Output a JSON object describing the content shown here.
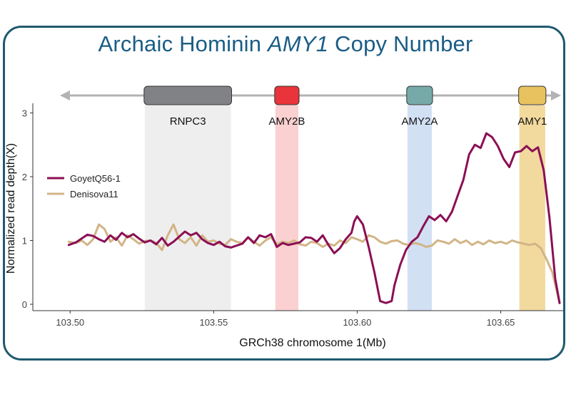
{
  "title": {
    "prefix": "Archaic Hominin ",
    "gene": "AMY1",
    "suffix": " Copy Number"
  },
  "chart_data": {
    "type": "line",
    "xlabel": "GRCh38 chromosome 1(Mb)",
    "ylabel": "Normalized read depth(X)",
    "xlim": [
      103.487,
      103.672
    ],
    "ylim": [
      -0.1,
      3.15
    ],
    "xticks": [
      103.5,
      103.55,
      103.6,
      103.65
    ],
    "xtick_labels": [
      "103.50",
      "103.55",
      "103.60",
      "103.65"
    ],
    "yticks": [
      0,
      1,
      2,
      3
    ],
    "ytick_labels": [
      "0",
      "1",
      "2",
      "3"
    ],
    "grid": false,
    "legend_position": "left",
    "genes": [
      {
        "name": "RNPC3",
        "start": 103.526,
        "end": 103.556,
        "color": "#808285",
        "band": "#eeeeee"
      },
      {
        "name": "AMY2B",
        "start": 103.5715,
        "end": 103.5795,
        "color": "#e8343a",
        "band": "#fbd0d0"
      },
      {
        "name": "AMY2A",
        "start": 103.6175,
        "end": 103.626,
        "color": "#76aaa9",
        "band": "#d2e0f4"
      },
      {
        "name": "AMY1",
        "start": 103.6565,
        "end": 103.6655,
        "color": "#e7c25e",
        "band": "#f0d28c"
      }
    ],
    "series": [
      {
        "name": "GoyetQ56-1",
        "color": "#8b0f55",
        "x": [
          103.4995,
          103.502,
          103.504,
          103.506,
          103.508,
          103.51,
          103.512,
          103.514,
          103.516,
          103.518,
          103.52,
          103.522,
          103.524,
          103.526,
          103.528,
          103.53,
          103.532,
          103.534,
          103.536,
          103.538,
          103.54,
          103.542,
          103.544,
          103.546,
          103.548,
          103.55,
          103.552,
          103.554,
          103.556,
          103.558,
          103.56,
          103.562,
          103.564,
          103.566,
          103.568,
          103.57,
          103.572,
          103.574,
          103.576,
          103.578,
          103.58,
          103.582,
          103.584,
          103.586,
          103.588,
          103.59,
          103.592,
          103.594,
          103.596,
          103.598,
          103.599,
          103.6,
          103.602,
          103.604,
          103.606,
          103.608,
          103.61,
          103.612,
          103.613,
          103.615,
          103.617,
          103.619,
          103.621,
          103.623,
          103.625,
          103.627,
          103.629,
          103.631,
          103.633,
          103.635,
          103.637,
          103.639,
          103.641,
          103.643,
          103.645,
          103.647,
          103.649,
          103.651,
          103.653,
          103.655,
          103.657,
          103.659,
          103.661,
          103.663,
          103.665,
          103.667,
          103.669,
          103.6705
        ],
        "values": [
          0.93,
          0.97,
          1.03,
          1.09,
          1.07,
          1.02,
          0.98,
          1.08,
          1.01,
          1.12,
          1.05,
          1.1,
          1.03,
          0.97,
          1.0,
          0.94,
          1.04,
          0.92,
          0.98,
          1.06,
          1.14,
          1.08,
          1.12,
          1.02,
          0.96,
          0.93,
          0.98,
          0.91,
          0.89,
          0.92,
          0.95,
          1.05,
          0.96,
          1.08,
          1.05,
          1.1,
          0.9,
          0.96,
          0.93,
          0.95,
          0.97,
          1.05,
          1.04,
          0.98,
          1.08,
          0.93,
          0.8,
          0.88,
          1.02,
          1.12,
          1.3,
          1.38,
          1.25,
          0.9,
          0.5,
          0.05,
          0.02,
          0.05,
          0.3,
          0.62,
          0.85,
          0.98,
          1.05,
          1.22,
          1.38,
          1.32,
          1.4,
          1.3,
          1.45,
          1.7,
          1.95,
          2.35,
          2.5,
          2.45,
          2.68,
          2.62,
          2.48,
          2.28,
          2.15,
          2.38,
          2.4,
          2.48,
          2.4,
          2.46,
          2.1,
          1.35,
          0.4,
          0.02
        ]
      },
      {
        "name": "Denisova11",
        "color": "#d2b486",
        "x": [
          103.4995,
          103.502,
          103.504,
          103.506,
          103.508,
          103.51,
          103.512,
          103.514,
          103.516,
          103.518,
          103.52,
          103.522,
          103.524,
          103.526,
          103.528,
          103.53,
          103.532,
          103.534,
          103.536,
          103.538,
          103.54,
          103.542,
          103.544,
          103.546,
          103.548,
          103.55,
          103.552,
          103.554,
          103.556,
          103.558,
          103.56,
          103.562,
          103.564,
          103.566,
          103.568,
          103.57,
          103.572,
          103.574,
          103.576,
          103.578,
          103.58,
          103.582,
          103.584,
          103.586,
          103.588,
          103.59,
          103.592,
          103.594,
          103.596,
          103.598,
          103.6,
          103.602,
          103.604,
          103.606,
          103.608,
          103.61,
          103.612,
          103.614,
          103.616,
          103.618,
          103.62,
          103.622,
          103.624,
          103.626,
          103.628,
          103.63,
          103.632,
          103.634,
          103.636,
          103.638,
          103.64,
          103.642,
          103.644,
          103.646,
          103.648,
          103.65,
          103.652,
          103.654,
          103.656,
          103.658,
          103.66,
          103.662,
          103.664,
          103.666,
          103.668,
          103.6705
        ],
        "values": [
          0.98,
          0.96,
          1.0,
          0.93,
          1.02,
          1.25,
          1.18,
          0.98,
          1.05,
          0.92,
          1.08,
          1.02,
          0.95,
          0.99,
          1.0,
          0.96,
          0.85,
          1.08,
          1.25,
          1.02,
          0.96,
          1.05,
          0.92,
          1.08,
          0.98,
          1.0,
          0.95,
          0.93,
          1.02,
          0.98,
          0.96,
          1.05,
          0.98,
          0.92,
          1.0,
          1.05,
          0.94,
          0.98,
          0.96,
          1.0,
          0.94,
          0.92,
          0.98,
          0.96,
          0.9,
          0.95,
          0.92,
          1.0,
          0.96,
          1.05,
          1.02,
          0.98,
          1.08,
          1.05,
          0.98,
          0.95,
          0.99,
          1.0,
          0.95,
          0.93,
          0.96,
          0.94,
          0.9,
          0.92,
          1.0,
          0.98,
          0.95,
          1.02,
          0.96,
          1.0,
          0.93,
          0.98,
          0.94,
          1.0,
          0.96,
          0.98,
          0.95,
          1.0,
          0.97,
          0.95,
          0.93,
          0.95,
          0.88,
          0.7,
          0.5,
          0.02
        ]
      }
    ]
  }
}
